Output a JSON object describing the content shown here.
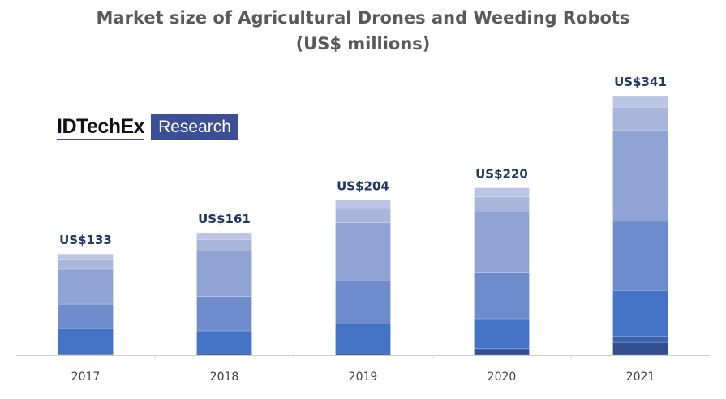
{
  "chart_data": {
    "type": "bar",
    "stacked": true,
    "title": "Market size of Agricultural Drones and Weeding Robots (US$ millions)",
    "title_lines": [
      "Market size of Agricultural Drones and Weeding Robots",
      "(US$ millions)"
    ],
    "xlabel": "",
    "ylabel": "",
    "categories": [
      "2017",
      "2018",
      "2019",
      "2020",
      "2021"
    ],
    "totals": [
      133,
      161,
      204,
      220,
      341
    ],
    "total_labels": [
      "US$133",
      "US$161",
      "US$204",
      "US$220",
      "US$341"
    ],
    "series": [
      {
        "values": [
          1,
          2,
          2,
          7,
          17
        ],
        "color": "#32508f"
      },
      {
        "values": [
          0,
          0,
          0,
          2,
          8
        ],
        "color": "#3b62ad"
      },
      {
        "values": [
          34,
          30,
          39,
          39,
          60
        ],
        "color": "#4472c4"
      },
      {
        "values": [
          32,
          45,
          57,
          60,
          91
        ],
        "color": "#6e8bcb"
      },
      {
        "values": [
          46,
          60,
          76,
          80,
          120
        ],
        "color": "#8fa3d4"
      },
      {
        "values": [
          13,
          15,
          19,
          20,
          30
        ],
        "color": "#a9b6dc"
      },
      {
        "values": [
          7,
          9,
          11,
          12,
          15
        ],
        "color": "#bcc6e4"
      }
    ],
    "ylim": [
      0,
      360
    ],
    "y_axis_visible": false,
    "grid": false,
    "legend": "none"
  },
  "logo": {
    "brand": "IDTechEx",
    "suffix": "Research"
  }
}
